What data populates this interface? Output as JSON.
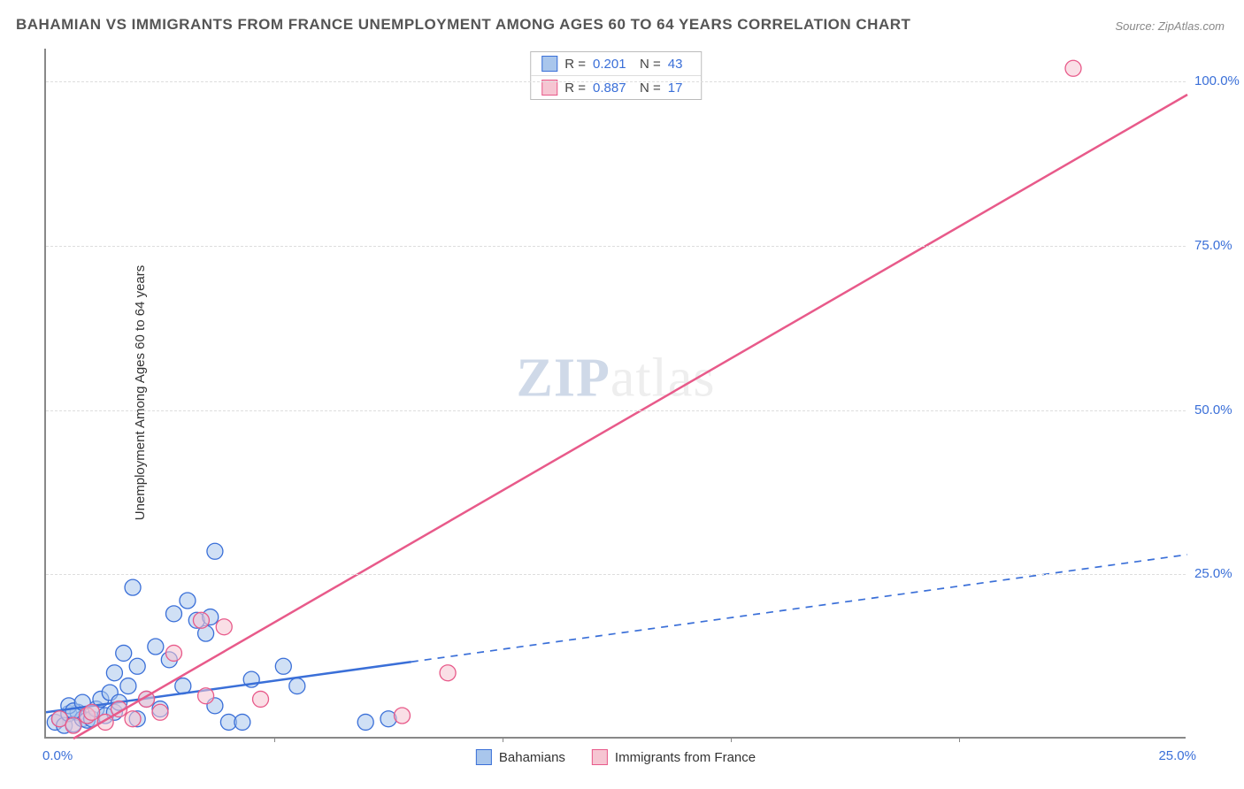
{
  "title": "BAHAMIAN VS IMMIGRANTS FROM FRANCE UNEMPLOYMENT AMONG AGES 60 TO 64 YEARS CORRELATION CHART",
  "source_label": "Source: ZipAtlas.com",
  "ylabel": "Unemployment Among Ages 60 to 64 years",
  "watermark_zip": "ZIP",
  "watermark_atlas": "atlas",
  "xlim": [
    0,
    25
  ],
  "ylim": [
    0,
    105
  ],
  "xticks": [
    {
      "v": 0,
      "label": "0.0%"
    },
    {
      "v": 25,
      "label": "25.0%"
    }
  ],
  "xtick_marks": [
    5,
    10,
    15,
    20
  ],
  "yticks": [
    {
      "v": 25,
      "label": "25.0%"
    },
    {
      "v": 50,
      "label": "50.0%"
    },
    {
      "v": 75,
      "label": "75.0%"
    },
    {
      "v": 100,
      "label": "100.0%"
    }
  ],
  "colors": {
    "blue_fill": "#a9c6ec",
    "blue_stroke": "#3a6fd8",
    "pink_fill": "#f6c5d2",
    "pink_stroke": "#e85a8a",
    "text_blue": "#3a6fd8",
    "ytick_color": "#3a6fd8",
    "xtick_color": "#3a6fd8"
  },
  "series": [
    {
      "key": "bahamians",
      "label": "Bahamians",
      "R": "0.201",
      "N": "43",
      "color_fill": "#a9c6ec",
      "color_stroke": "#3a6fd8",
      "marker_radius": 9,
      "marker_opacity": 0.55,
      "trend": {
        "x1": 0,
        "y1": 4,
        "x2": 25,
        "y2": 28,
        "solid_until_x": 8,
        "width": 2.5
      },
      "points": [
        [
          0.2,
          2.5
        ],
        [
          0.3,
          3.0
        ],
        [
          0.4,
          2.0
        ],
        [
          0.5,
          3.8
        ],
        [
          0.6,
          2.2
        ],
        [
          0.7,
          4.0
        ],
        [
          0.8,
          3.0
        ],
        [
          0.9,
          2.8
        ],
        [
          0.5,
          5.0
        ],
        [
          0.6,
          4.2
        ],
        [
          0.8,
          5.5
        ],
        [
          1.0,
          3.0
        ],
        [
          1.1,
          4.5
        ],
        [
          1.2,
          6.0
        ],
        [
          1.3,
          3.5
        ],
        [
          1.4,
          7.0
        ],
        [
          1.5,
          4.0
        ],
        [
          1.5,
          10.0
        ],
        [
          1.6,
          5.5
        ],
        [
          1.7,
          13.0
        ],
        [
          1.8,
          8.0
        ],
        [
          1.9,
          23.0
        ],
        [
          2.0,
          3.0
        ],
        [
          2.0,
          11.0
        ],
        [
          2.2,
          6.0
        ],
        [
          2.4,
          14.0
        ],
        [
          2.5,
          4.5
        ],
        [
          2.7,
          12.0
        ],
        [
          2.8,
          19.0
        ],
        [
          3.0,
          8.0
        ],
        [
          3.1,
          21.0
        ],
        [
          3.3,
          18.0
        ],
        [
          3.5,
          16.0
        ],
        [
          3.6,
          18.5
        ],
        [
          3.7,
          5.0
        ],
        [
          3.7,
          28.5
        ],
        [
          4.0,
          2.5
        ],
        [
          4.3,
          2.5
        ],
        [
          4.5,
          9.0
        ],
        [
          5.2,
          11.0
        ],
        [
          5.5,
          8.0
        ],
        [
          7.0,
          2.5
        ],
        [
          7.5,
          3.0
        ]
      ]
    },
    {
      "key": "france",
      "label": "Immigrants from France",
      "R": "0.887",
      "N": "17",
      "color_fill": "#f6c5d2",
      "color_stroke": "#e85a8a",
      "marker_radius": 9,
      "marker_opacity": 0.55,
      "trend": {
        "x1": 0.6,
        "y1": 0,
        "x2": 25,
        "y2": 98,
        "solid_until_x": 25,
        "width": 2.5
      },
      "points": [
        [
          0.3,
          3.0
        ],
        [
          0.6,
          2.0
        ],
        [
          0.9,
          3.5
        ],
        [
          1.0,
          4.0
        ],
        [
          1.3,
          2.5
        ],
        [
          1.6,
          4.5
        ],
        [
          1.9,
          3.0
        ],
        [
          2.2,
          6.0
        ],
        [
          2.5,
          4.0
        ],
        [
          2.8,
          13.0
        ],
        [
          3.4,
          18.0
        ],
        [
          3.5,
          6.5
        ],
        [
          3.9,
          17.0
        ],
        [
          4.7,
          6.0
        ],
        [
          7.8,
          3.5
        ],
        [
          8.8,
          10.0
        ],
        [
          22.5,
          102.0
        ]
      ]
    }
  ],
  "legend_labels": {
    "R": "R =",
    "N": "N ="
  }
}
